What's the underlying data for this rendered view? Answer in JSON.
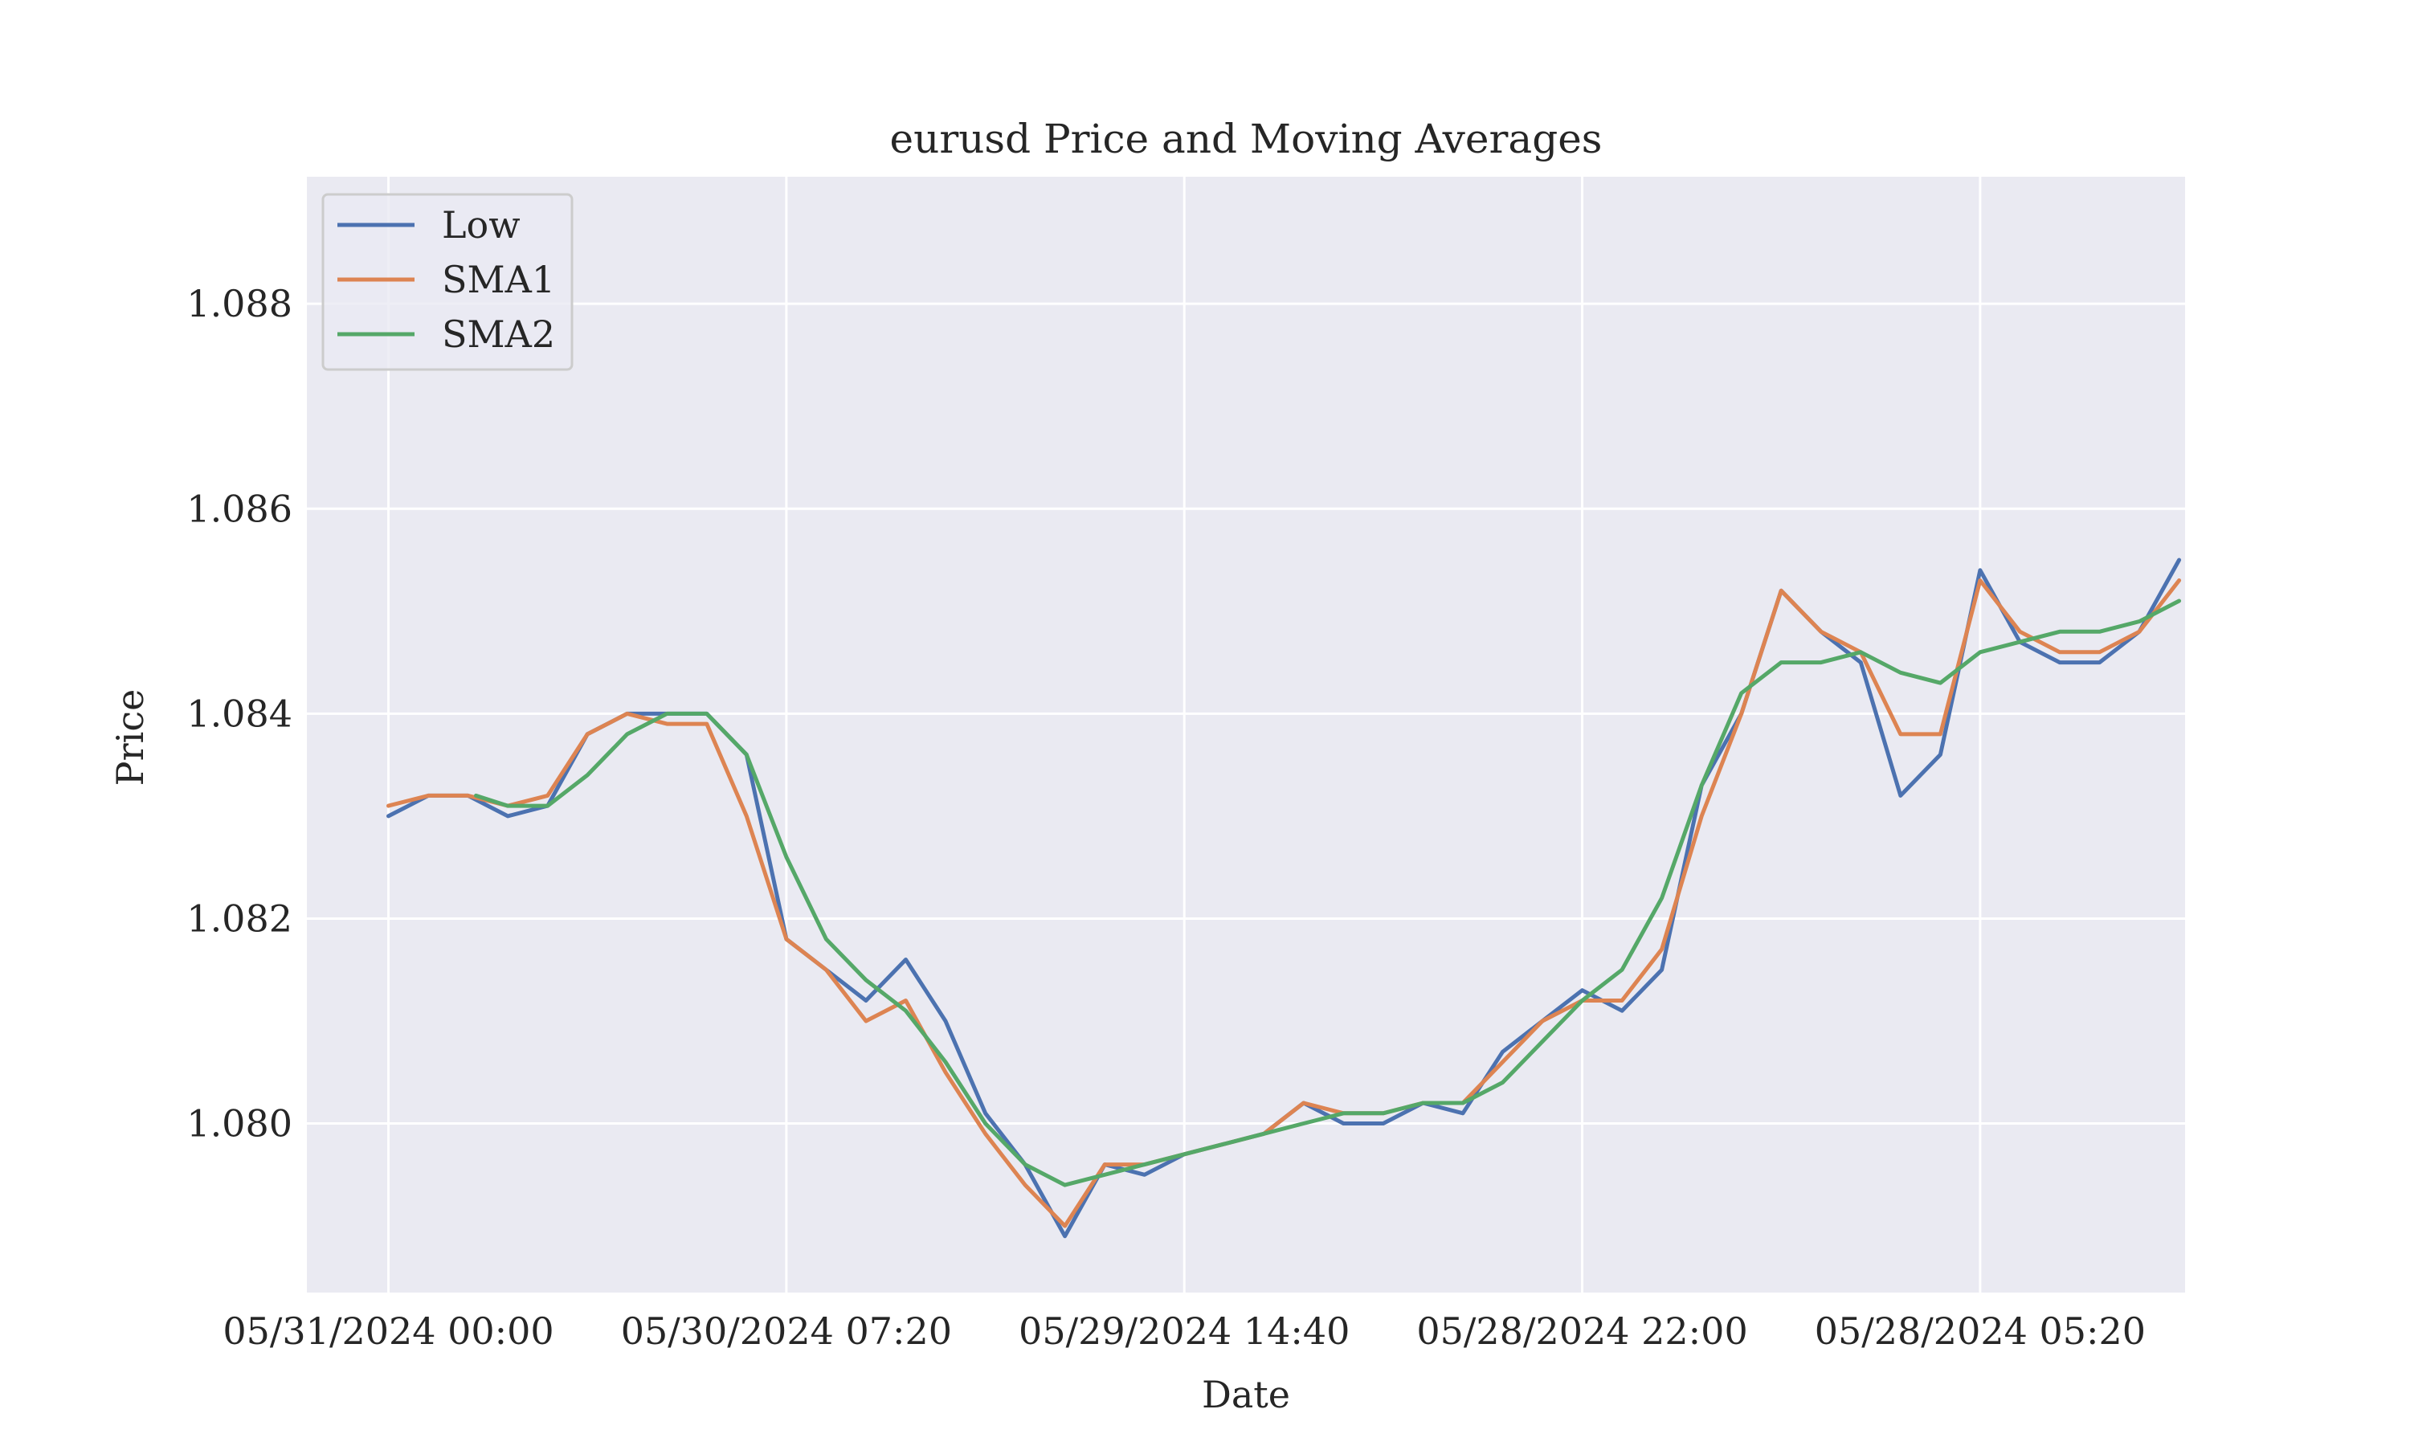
{
  "chart_data": {
    "type": "line",
    "title": "eurusd Price and Moving Averages",
    "xlabel": "Date",
    "ylabel": "Price",
    "x_tick_labels": [
      "05/31/2024 00:00",
      "05/30/2024 07:20",
      "05/29/2024 14:40",
      "05/28/2024 22:00",
      "05/28/2024 05:20"
    ],
    "y_tick_labels": [
      "1.080",
      "1.082",
      "1.084",
      "1.086",
      "1.088"
    ],
    "y_ticks": [
      1.08,
      1.082,
      1.084,
      1.086,
      1.088
    ],
    "x_tick_index": [
      0,
      100,
      200,
      300,
      400
    ],
    "xlim": [
      -20.5,
      451.5
    ],
    "ylim": [
      1.07835,
      1.08924
    ],
    "grid": true,
    "legend_position": "top-left",
    "colors": {
      "background": "#eaeaf2",
      "grid": "#ffffff",
      "text": "#262626",
      "legend_border": "#cccccc",
      "low": "#4c72b0",
      "sma1": "#dd8452",
      "sma2": "#55a868"
    },
    "series": [
      {
        "name": "Low",
        "color_key": "low",
        "points": [
          [
            0,
            1.083
          ],
          [
            10,
            1.0832
          ],
          [
            20,
            1.0832
          ],
          [
            30,
            1.083
          ],
          [
            40,
            1.0831
          ],
          [
            50,
            1.0838
          ],
          [
            60,
            1.084
          ],
          [
            70,
            1.084
          ],
          [
            80,
            1.084
          ],
          [
            90,
            1.0836
          ],
          [
            100,
            1.0818
          ],
          [
            110,
            1.0815
          ],
          [
            120,
            1.0812
          ],
          [
            130,
            1.0816
          ],
          [
            140,
            1.081
          ],
          [
            150,
            1.0801
          ],
          [
            160,
            1.0796
          ],
          [
            170,
            1.0789
          ],
          [
            180,
            1.0796
          ],
          [
            190,
            1.0795
          ],
          [
            200,
            1.0797
          ],
          [
            210,
            1.0798
          ],
          [
            220,
            1.0799
          ],
          [
            230,
            1.0802
          ],
          [
            240,
            1.08
          ],
          [
            250,
            1.08
          ],
          [
            260,
            1.0802
          ],
          [
            270,
            1.0801
          ],
          [
            280,
            1.0807
          ],
          [
            290,
            1.081
          ],
          [
            300,
            1.0813
          ],
          [
            310,
            1.0811
          ],
          [
            320,
            1.0815
          ],
          [
            330,
            1.0833
          ],
          [
            340,
            1.084
          ],
          [
            350,
            1.0852
          ],
          [
            360,
            1.0848
          ],
          [
            370,
            1.0845
          ],
          [
            380,
            1.0832
          ],
          [
            390,
            1.0836
          ],
          [
            400,
            1.0854
          ],
          [
            410,
            1.0847
          ],
          [
            420,
            1.0845
          ],
          [
            430,
            1.0845
          ],
          [
            440,
            1.0848
          ],
          [
            450,
            1.0855
          ]
        ]
      },
      {
        "name": "SMA1",
        "color_key": "sma1",
        "points": [
          [
            0,
            1.0831
          ],
          [
            10,
            1.0832
          ],
          [
            20,
            1.0832
          ],
          [
            30,
            1.0831
          ],
          [
            40,
            1.0832
          ],
          [
            50,
            1.0838
          ],
          [
            60,
            1.084
          ],
          [
            70,
            1.0839
          ],
          [
            80,
            1.0839
          ],
          [
            90,
            1.083
          ],
          [
            100,
            1.0818
          ],
          [
            110,
            1.0815
          ],
          [
            120,
            1.081
          ],
          [
            130,
            1.0812
          ],
          [
            140,
            1.0805
          ],
          [
            150,
            1.0799
          ],
          [
            160,
            1.0794
          ],
          [
            170,
            1.079
          ],
          [
            180,
            1.0796
          ],
          [
            190,
            1.0796
          ],
          [
            200,
            1.0797
          ],
          [
            210,
            1.0798
          ],
          [
            220,
            1.0799
          ],
          [
            230,
            1.0802
          ],
          [
            240,
            1.0801
          ],
          [
            250,
            1.0801
          ],
          [
            260,
            1.0802
          ],
          [
            270,
            1.0802
          ],
          [
            280,
            1.0806
          ],
          [
            290,
            1.081
          ],
          [
            300,
            1.0812
          ],
          [
            310,
            1.0812
          ],
          [
            320,
            1.0817
          ],
          [
            330,
            1.083
          ],
          [
            340,
            1.084
          ],
          [
            350,
            1.0852
          ],
          [
            360,
            1.0848
          ],
          [
            370,
            1.0846
          ],
          [
            380,
            1.0838
          ],
          [
            390,
            1.0838
          ],
          [
            400,
            1.0853
          ],
          [
            410,
            1.0848
          ],
          [
            420,
            1.0846
          ],
          [
            430,
            1.0846
          ],
          [
            440,
            1.0848
          ],
          [
            450,
            1.0853
          ]
        ]
      },
      {
        "name": "SMA2",
        "color_key": "sma2",
        "points": [
          [
            22,
            1.0832
          ],
          [
            30,
            1.0831
          ],
          [
            40,
            1.0831
          ],
          [
            50,
            1.0834
          ],
          [
            60,
            1.0838
          ],
          [
            70,
            1.084
          ],
          [
            80,
            1.084
          ],
          [
            90,
            1.0836
          ],
          [
            100,
            1.0826
          ],
          [
            110,
            1.0818
          ],
          [
            120,
            1.0814
          ],
          [
            130,
            1.0811
          ],
          [
            140,
            1.0806
          ],
          [
            150,
            1.08
          ],
          [
            160,
            1.0796
          ],
          [
            170,
            1.0794
          ],
          [
            180,
            1.0795
          ],
          [
            190,
            1.0796
          ],
          [
            200,
            1.0797
          ],
          [
            210,
            1.0798
          ],
          [
            220,
            1.0799
          ],
          [
            230,
            1.08
          ],
          [
            240,
            1.0801
          ],
          [
            250,
            1.0801
          ],
          [
            260,
            1.0802
          ],
          [
            270,
            1.0802
          ],
          [
            280,
            1.0804
          ],
          [
            290,
            1.0808
          ],
          [
            300,
            1.0812
          ],
          [
            310,
            1.0815
          ],
          [
            320,
            1.0822
          ],
          [
            330,
            1.0833
          ],
          [
            340,
            1.0842
          ],
          [
            350,
            1.0845
          ],
          [
            360,
            1.0845
          ],
          [
            370,
            1.0846
          ],
          [
            380,
            1.0844
          ],
          [
            390,
            1.0843
          ],
          [
            400,
            1.0846
          ],
          [
            410,
            1.0847
          ],
          [
            420,
            1.0848
          ],
          [
            430,
            1.0848
          ],
          [
            440,
            1.0849
          ],
          [
            450,
            1.0851
          ]
        ]
      }
    ]
  }
}
